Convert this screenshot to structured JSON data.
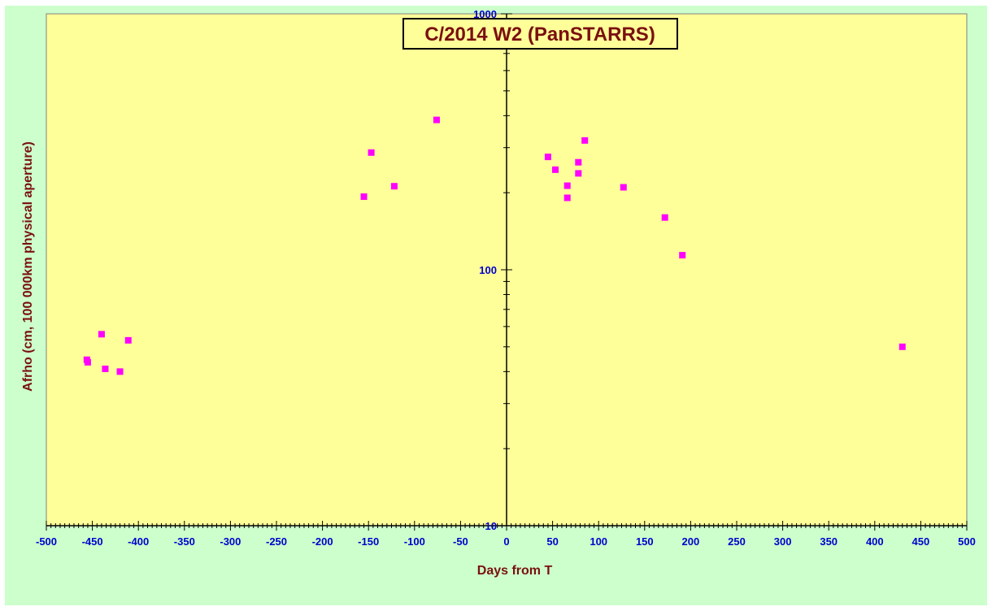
{
  "chart_data": {
    "type": "scatter",
    "title": "C/2014 W2 (PanSTARRS)",
    "xlabel": "Days from T",
    "ylabel": "Afrho (cm, 100 000km physical aperture)",
    "xlim": [
      -500,
      500
    ],
    "ylim": [
      10,
      1000
    ],
    "yscale": "log",
    "x_ticks": [
      -500,
      -450,
      -400,
      -350,
      -300,
      -250,
      -200,
      -150,
      -100,
      -50,
      0,
      50,
      100,
      150,
      200,
      250,
      300,
      350,
      400,
      450,
      500
    ],
    "y_ticks": [
      10,
      100,
      1000
    ],
    "grid": false,
    "legend": "none",
    "marker": "square",
    "colors": {
      "outer_background": "#ccffcc",
      "plot_background": "#ffff99",
      "marker": "#ff00ff",
      "tick_labels": "#0000cc",
      "titles": "#7a1010"
    },
    "series": [
      {
        "points": [
          {
            "x": -456,
            "y": 44.5
          },
          {
            "x": -455,
            "y": 43.5
          },
          {
            "x": -440,
            "y": 56
          },
          {
            "x": -436,
            "y": 41
          },
          {
            "x": -420,
            "y": 40
          },
          {
            "x": -411,
            "y": 53
          },
          {
            "x": -155,
            "y": 193
          },
          {
            "x": -147,
            "y": 287
          },
          {
            "x": -122,
            "y": 212
          },
          {
            "x": -76,
            "y": 385
          },
          {
            "x": 45,
            "y": 276
          },
          {
            "x": 53,
            "y": 246
          },
          {
            "x": 66,
            "y": 213
          },
          {
            "x": 66,
            "y": 191
          },
          {
            "x": 78,
            "y": 263
          },
          {
            "x": 78,
            "y": 238
          },
          {
            "x": 85,
            "y": 320
          },
          {
            "x": 127,
            "y": 210
          },
          {
            "x": 172,
            "y": 160
          },
          {
            "x": 191,
            "y": 114
          },
          {
            "x": 430,
            "y": 50
          }
        ]
      }
    ]
  }
}
